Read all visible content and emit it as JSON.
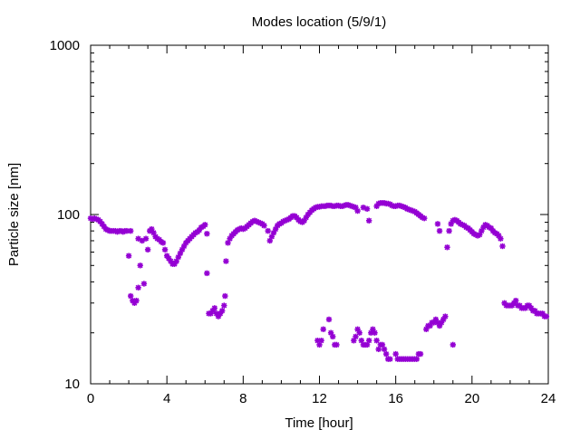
{
  "chart_data": {
    "type": "scatter",
    "title": "Modes location (5/9/1)",
    "xlabel": "Time [hour]",
    "ylabel": "Particle size [nm]",
    "xlim": [
      0,
      24
    ],
    "ylim": [
      10,
      1000
    ],
    "yscale": "log",
    "x_ticks": [
      0,
      4,
      8,
      12,
      16,
      20,
      24
    ],
    "y_ticks": [
      10,
      100,
      1000
    ],
    "grid": false,
    "legend": "none",
    "marker_color": "#9400d3",
    "series": [
      {
        "points": [
          [
            0.0,
            95
          ],
          [
            0.1,
            94
          ],
          [
            0.2,
            95
          ],
          [
            0.3,
            94
          ],
          [
            0.4,
            93
          ],
          [
            0.5,
            91
          ],
          [
            0.6,
            88
          ],
          [
            0.7,
            85
          ],
          [
            0.8,
            82
          ],
          [
            0.9,
            81
          ],
          [
            1.0,
            80
          ],
          [
            1.1,
            80
          ],
          [
            1.2,
            80
          ],
          [
            1.3,
            80
          ],
          [
            1.4,
            79
          ],
          [
            1.5,
            80
          ],
          [
            1.6,
            80
          ],
          [
            1.7,
            79
          ],
          [
            1.8,
            80
          ],
          [
            1.9,
            80
          ],
          [
            2.1,
            80
          ],
          [
            2.5,
            72
          ],
          [
            2.7,
            70
          ],
          [
            2.9,
            72
          ],
          [
            3.1,
            80
          ],
          [
            3.2,
            82
          ],
          [
            3.3,
            78
          ],
          [
            3.4,
            74
          ],
          [
            3.5,
            72
          ],
          [
            3.6,
            71
          ],
          [
            3.7,
            69
          ],
          [
            3.8,
            68
          ],
          [
            3.9,
            62
          ],
          [
            4.0,
            57
          ],
          [
            4.1,
            55
          ],
          [
            4.2,
            53
          ],
          [
            4.3,
            51
          ],
          [
            4.4,
            51
          ],
          [
            4.5,
            53
          ],
          [
            4.6,
            56
          ],
          [
            4.7,
            59
          ],
          [
            4.8,
            62
          ],
          [
            4.9,
            65
          ],
          [
            5.0,
            68
          ],
          [
            5.1,
            70
          ],
          [
            5.2,
            72
          ],
          [
            5.3,
            74
          ],
          [
            5.4,
            76
          ],
          [
            5.5,
            78
          ],
          [
            5.6,
            79
          ],
          [
            5.7,
            81
          ],
          [
            5.8,
            84
          ],
          [
            5.9,
            85
          ],
          [
            6.0,
            87
          ],
          [
            6.1,
            77
          ],
          [
            7.2,
            68
          ],
          [
            7.3,
            72
          ],
          [
            7.4,
            75
          ],
          [
            7.5,
            77
          ],
          [
            7.6,
            79
          ],
          [
            7.7,
            81
          ],
          [
            7.8,
            82
          ],
          [
            7.9,
            83
          ],
          [
            8.0,
            82
          ],
          [
            8.1,
            83
          ],
          [
            8.2,
            85
          ],
          [
            8.3,
            87
          ],
          [
            8.4,
            89
          ],
          [
            8.5,
            91
          ],
          [
            8.6,
            92
          ],
          [
            8.7,
            91
          ],
          [
            8.8,
            90
          ],
          [
            8.9,
            89
          ],
          [
            9.0,
            88
          ],
          [
            9.1,
            86
          ],
          [
            9.3,
            80
          ],
          [
            9.4,
            70
          ],
          [
            9.5,
            74
          ],
          [
            9.6,
            78
          ],
          [
            9.7,
            82
          ],
          [
            9.8,
            86
          ],
          [
            9.9,
            88
          ],
          [
            10.0,
            89
          ],
          [
            10.1,
            91
          ],
          [
            10.2,
            92
          ],
          [
            10.3,
            93
          ],
          [
            10.4,
            94
          ],
          [
            10.5,
            96
          ],
          [
            10.6,
            98
          ],
          [
            10.7,
            98
          ],
          [
            10.8,
            96
          ],
          [
            10.9,
            93
          ],
          [
            11.0,
            91
          ],
          [
            11.1,
            90
          ],
          [
            11.2,
            92
          ],
          [
            11.3,
            96
          ],
          [
            11.4,
            100
          ],
          [
            11.5,
            103
          ],
          [
            11.6,
            106
          ],
          [
            11.7,
            108
          ],
          [
            11.8,
            110
          ],
          [
            11.9,
            111
          ],
          [
            12.0,
            111
          ],
          [
            12.1,
            112
          ],
          [
            12.2,
            112
          ],
          [
            12.3,
            112
          ],
          [
            12.4,
            113
          ],
          [
            12.5,
            113
          ],
          [
            12.6,
            113
          ],
          [
            12.7,
            112
          ],
          [
            12.8,
            112
          ],
          [
            12.9,
            113
          ],
          [
            13.0,
            113
          ],
          [
            13.1,
            112
          ],
          [
            13.2,
            112
          ],
          [
            13.3,
            113
          ],
          [
            13.4,
            114
          ],
          [
            13.5,
            114
          ],
          [
            13.6,
            113
          ],
          [
            13.7,
            112
          ],
          [
            13.8,
            111
          ],
          [
            13.9,
            110
          ],
          [
            14.0,
            105
          ],
          [
            14.3,
            110
          ],
          [
            14.5,
            108
          ],
          [
            14.6,
            92
          ],
          [
            15.0,
            112
          ],
          [
            15.1,
            116
          ],
          [
            15.2,
            117
          ],
          [
            15.3,
            117
          ],
          [
            15.4,
            117
          ],
          [
            15.5,
            116
          ],
          [
            15.6,
            116
          ],
          [
            15.7,
            115
          ],
          [
            15.8,
            113
          ],
          [
            15.9,
            112
          ],
          [
            16.0,
            112
          ],
          [
            16.1,
            113
          ],
          [
            16.2,
            113
          ],
          [
            16.3,
            112
          ],
          [
            16.4,
            111
          ],
          [
            16.5,
            110
          ],
          [
            16.6,
            108
          ],
          [
            16.7,
            107
          ],
          [
            16.8,
            106
          ],
          [
            16.9,
            105
          ],
          [
            17.0,
            104
          ],
          [
            17.1,
            102
          ],
          [
            17.2,
            100
          ],
          [
            17.3,
            98
          ],
          [
            17.4,
            96
          ],
          [
            17.5,
            95
          ],
          [
            18.2,
            88
          ],
          [
            18.3,
            80
          ],
          [
            18.7,
            64
          ],
          [
            18.8,
            80
          ],
          [
            18.9,
            88
          ],
          [
            19.0,
            92
          ],
          [
            19.1,
            93
          ],
          [
            19.2,
            92
          ],
          [
            19.3,
            90
          ],
          [
            19.4,
            88
          ],
          [
            19.5,
            87
          ],
          [
            19.6,
            86
          ],
          [
            19.7,
            84
          ],
          [
            19.8,
            83
          ],
          [
            19.9,
            81
          ],
          [
            20.0,
            79
          ],
          [
            20.1,
            77
          ],
          [
            20.2,
            76
          ],
          [
            20.3,
            75
          ],
          [
            20.4,
            76
          ],
          [
            20.5,
            80
          ],
          [
            20.6,
            84
          ],
          [
            20.7,
            87
          ],
          [
            20.8,
            86
          ],
          [
            20.9,
            84
          ],
          [
            21.0,
            83
          ],
          [
            21.1,
            80
          ],
          [
            21.2,
            78
          ],
          [
            21.3,
            77
          ],
          [
            21.4,
            75
          ],
          [
            21.5,
            72
          ],
          [
            21.6,
            65
          ],
          [
            2.0,
            57
          ],
          [
            2.1,
            33
          ],
          [
            2.2,
            31
          ],
          [
            2.3,
            30
          ],
          [
            2.4,
            31
          ],
          [
            2.5,
            37
          ],
          [
            2.6,
            50
          ],
          [
            2.8,
            39
          ],
          [
            3.0,
            62
          ],
          [
            6.1,
            45
          ],
          [
            6.2,
            26
          ],
          [
            6.3,
            26
          ],
          [
            6.4,
            27
          ],
          [
            6.5,
            28
          ],
          [
            6.6,
            26
          ],
          [
            6.7,
            25
          ],
          [
            6.8,
            26
          ],
          [
            6.9,
            27
          ],
          [
            7.0,
            29
          ],
          [
            7.05,
            33
          ],
          [
            7.1,
            53
          ],
          [
            11.9,
            18
          ],
          [
            12.0,
            17
          ],
          [
            12.1,
            18
          ],
          [
            12.2,
            21
          ],
          [
            12.5,
            24
          ],
          [
            12.6,
            20
          ],
          [
            12.7,
            19
          ],
          [
            12.8,
            17
          ],
          [
            12.9,
            17
          ],
          [
            13.8,
            18
          ],
          [
            13.9,
            19
          ],
          [
            14.0,
            21
          ],
          [
            14.1,
            20
          ],
          [
            14.2,
            18
          ],
          [
            14.3,
            17
          ],
          [
            14.4,
            17
          ],
          [
            14.5,
            17
          ],
          [
            14.6,
            18
          ],
          [
            14.7,
            20
          ],
          [
            14.8,
            21
          ],
          [
            14.9,
            20
          ],
          [
            15.0,
            18
          ],
          [
            15.1,
            16
          ],
          [
            15.2,
            17
          ],
          [
            15.3,
            17
          ],
          [
            15.4,
            16
          ],
          [
            15.5,
            15
          ],
          [
            15.6,
            14
          ],
          [
            15.7,
            14
          ],
          [
            16.0,
            15
          ],
          [
            16.1,
            14
          ],
          [
            16.2,
            14
          ],
          [
            16.3,
            14
          ],
          [
            16.4,
            14
          ],
          [
            16.5,
            14
          ],
          [
            16.6,
            14
          ],
          [
            16.7,
            14
          ],
          [
            16.8,
            14
          ],
          [
            16.9,
            14
          ],
          [
            17.0,
            14
          ],
          [
            17.1,
            14
          ],
          [
            17.2,
            15
          ],
          [
            17.3,
            15
          ],
          [
            17.6,
            21
          ],
          [
            17.7,
            22
          ],
          [
            17.8,
            22
          ],
          [
            17.9,
            23
          ],
          [
            18.0,
            23
          ],
          [
            18.1,
            24
          ],
          [
            18.2,
            23
          ],
          [
            18.3,
            22
          ],
          [
            18.4,
            23
          ],
          [
            18.5,
            24
          ],
          [
            18.6,
            25
          ],
          [
            19.0,
            17
          ],
          [
            21.7,
            30
          ],
          [
            21.8,
            29
          ],
          [
            21.9,
            29
          ],
          [
            22.0,
            29
          ],
          [
            22.1,
            29
          ],
          [
            22.2,
            30
          ],
          [
            22.3,
            31
          ],
          [
            22.4,
            29
          ],
          [
            22.5,
            29
          ],
          [
            22.6,
            28
          ],
          [
            22.7,
            28
          ],
          [
            22.8,
            28
          ],
          [
            22.9,
            29
          ],
          [
            23.0,
            29
          ],
          [
            23.1,
            28
          ],
          [
            23.2,
            27
          ],
          [
            23.3,
            27
          ],
          [
            23.4,
            26
          ],
          [
            23.5,
            26
          ],
          [
            23.6,
            26
          ],
          [
            23.7,
            26
          ],
          [
            23.8,
            25
          ],
          [
            23.9,
            25
          ]
        ]
      }
    ]
  }
}
